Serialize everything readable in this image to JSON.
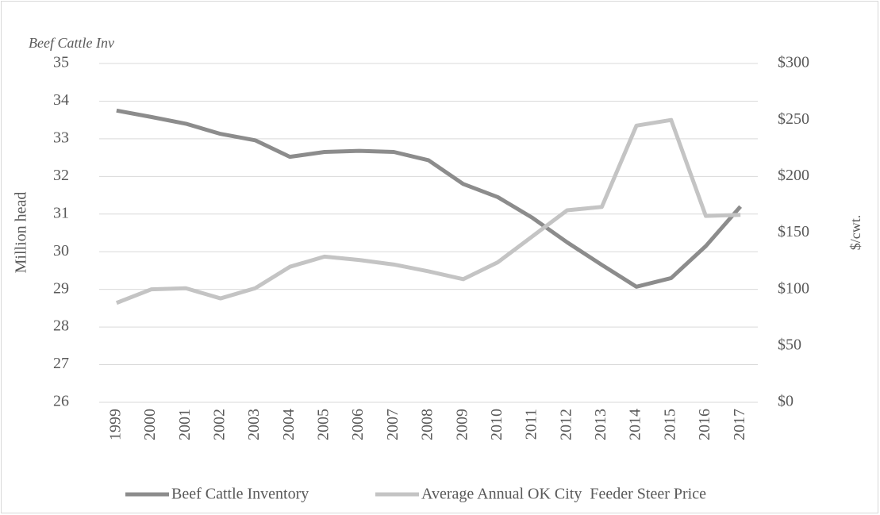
{
  "chart_data": {
    "type": "line",
    "title": "Beef Cattle  Inv",
    "y_label": "Million head",
    "y2_label": "$/cwt.",
    "categories": [
      "1999",
      "2000",
      "2001",
      "2002",
      "2003",
      "2004",
      "2005",
      "2006",
      "2007",
      "2008",
      "2009",
      "2010",
      "2011",
      "2012",
      "2013",
      "2014",
      "2015",
      "2016",
      "2017"
    ],
    "series": [
      {
        "name": "Beef Cattle Inventory",
        "color": "#8c8c8c",
        "values": [
          33.75,
          33.58,
          33.4,
          33.13,
          32.96,
          32.52,
          32.65,
          32.68,
          32.65,
          32.43,
          31.8,
          31.45,
          30.9,
          30.25,
          29.65,
          29.07,
          29.3,
          30.15,
          31.2
        ]
      },
      {
        "name": "Average Annual OK City  Feeder Steer Price",
        "color": "#c4c4c4",
        "axis": "y2",
        "values": [
          88,
          100,
          101,
          92,
          101,
          120,
          129,
          126,
          122,
          116,
          109,
          124,
          147,
          170,
          173,
          245,
          250,
          165,
          166
        ]
      }
    ],
    "ylim": [
      26,
      35
    ],
    "yticks": [
      26,
      27,
      28,
      29,
      30,
      31,
      32,
      33,
      34,
      35
    ],
    "y2lim": [
      0,
      300
    ],
    "y2ticks": [
      {
        "value": 0,
        "label": "$0"
      },
      {
        "value": 50,
        "label": "$50"
      },
      {
        "value": 100,
        "label": "$100"
      },
      {
        "value": 150,
        "label": "$150"
      },
      {
        "value": 200,
        "label": "$200"
      },
      {
        "value": 250,
        "label": "$250"
      },
      {
        "value": 300,
        "label": "$300"
      }
    ],
    "grid": true
  }
}
